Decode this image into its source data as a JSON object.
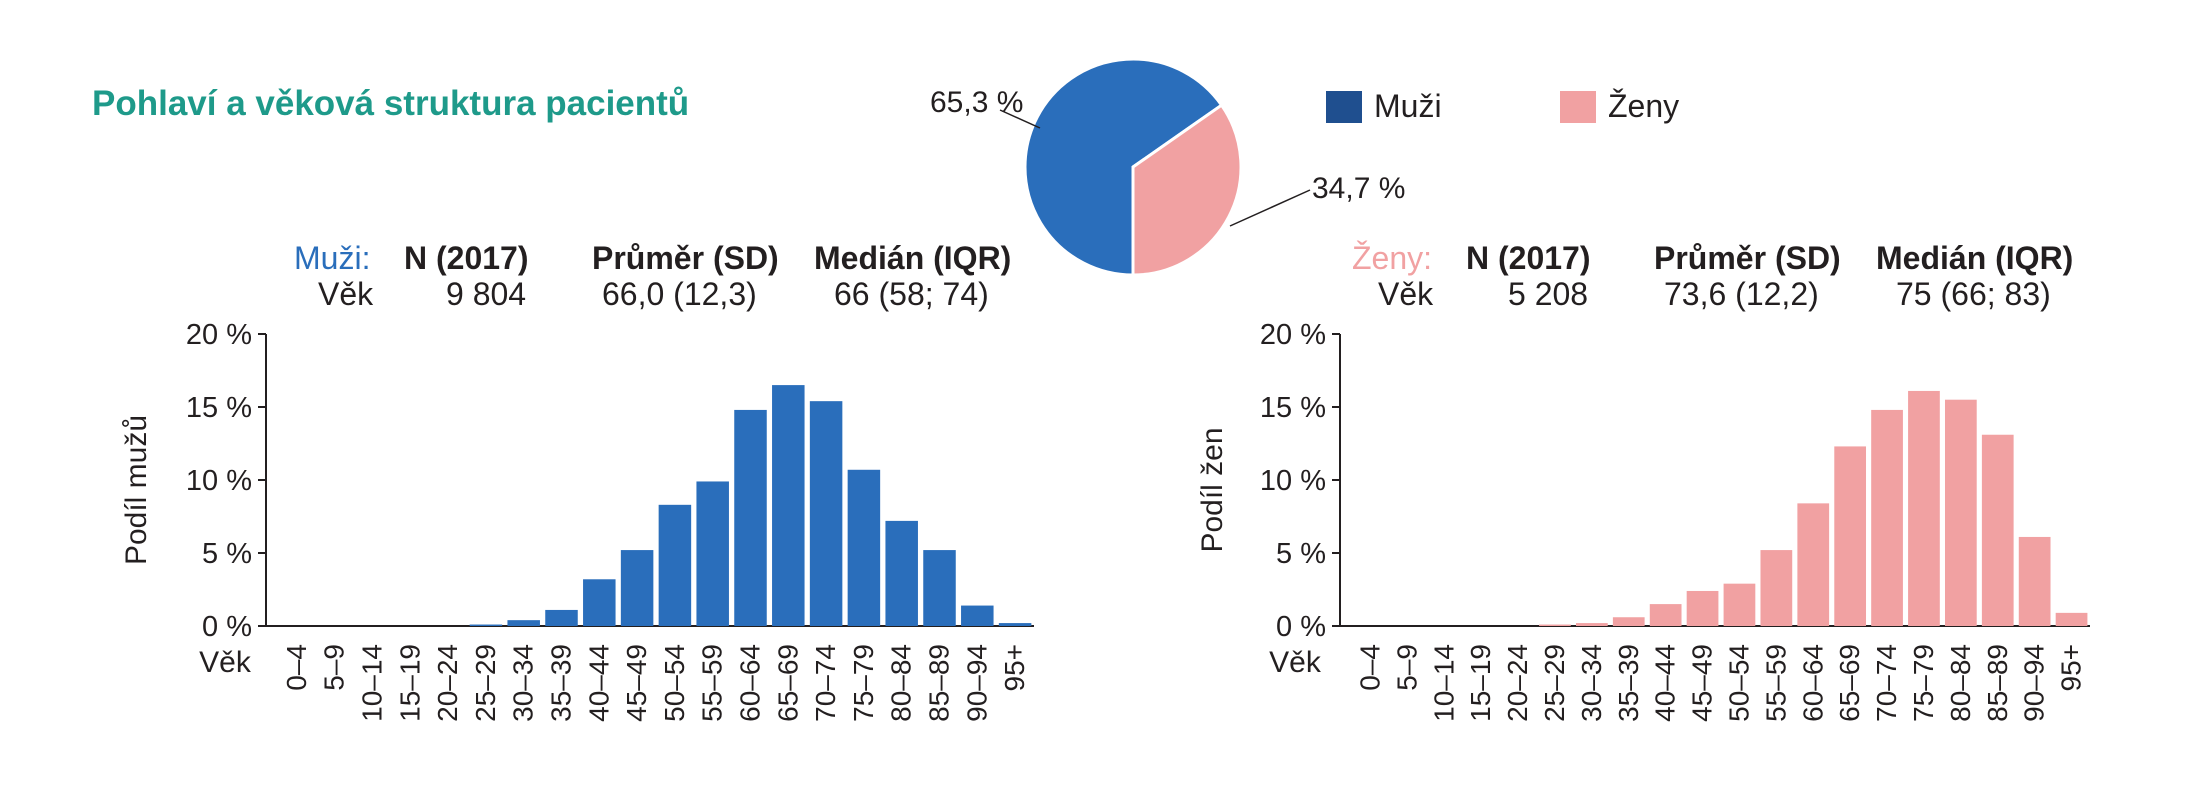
{
  "title": "Pohlaví a věková struktura pacientů",
  "colors": {
    "men": "#2a6ebb",
    "women": "#f1a1a2",
    "title": "#1e9a8a",
    "men_label": "#2a6ebb",
    "women_label": "#f1a1a2"
  },
  "legend": {
    "men": "Muži",
    "women": "Ženy"
  },
  "pie": {
    "men_pct": 65.3,
    "women_pct": 34.7,
    "men_label": "65,3 %",
    "women_label": "34,7 %"
  },
  "men_stats": {
    "group": "Muži:",
    "rowlabel": "Věk",
    "h_n": "N (2017)",
    "h_mean": "Průměr (SD)",
    "h_median": "Medián (IQR)",
    "n": "9 804",
    "mean": "66,0 (12,3)",
    "median": "66 (58; 74)"
  },
  "women_stats": {
    "group": "Ženy:",
    "rowlabel": "Věk",
    "h_n": "N (2017)",
    "h_mean": "Průměr (SD)",
    "h_median": "Medián (IQR)",
    "n": "5 208",
    "mean": "73,6 (12,2)",
    "median": "75 (66; 83)"
  },
  "chart_data": [
    {
      "type": "bar",
      "ylabel": "Podíl mužů",
      "xlabel": "Věk",
      "ylim": [
        0,
        20
      ],
      "yticks": [
        "0 %",
        "5 %",
        "10 %",
        "15 %",
        "20 %"
      ],
      "categories": [
        "0–4",
        "5–9",
        "10–14",
        "15–19",
        "20–24",
        "25–29",
        "30–34",
        "35–39",
        "40–44",
        "45–49",
        "50–54",
        "55–59",
        "60–64",
        "65–69",
        "70–74",
        "75–79",
        "80–84",
        "85–89",
        "90–94",
        "95+"
      ],
      "values": [
        0,
        0,
        0,
        0,
        0,
        0.1,
        0.4,
        1.1,
        3.2,
        5.2,
        8.3,
        9.9,
        14.8,
        16.5,
        15.4,
        10.7,
        7.2,
        5.2,
        1.4,
        0.2
      ],
      "color": "#2a6ebb"
    },
    {
      "type": "bar",
      "ylabel": "Podíl žen",
      "xlabel": "Věk",
      "ylim": [
        0,
        20
      ],
      "yticks": [
        "0 %",
        "5 %",
        "10 %",
        "15 %",
        "20 %"
      ],
      "categories": [
        "0–4",
        "5–9",
        "10–14",
        "15–19",
        "20–24",
        "25–29",
        "30–34",
        "35–39",
        "40–44",
        "45–49",
        "50–54",
        "55–59",
        "60–64",
        "65–69",
        "70–74",
        "75–79",
        "80–84",
        "85–89",
        "90–94",
        "95+"
      ],
      "values": [
        0,
        0,
        0,
        0,
        0,
        0.1,
        0.2,
        0.6,
        1.5,
        2.4,
        2.9,
        5.2,
        8.4,
        12.3,
        14.8,
        16.1,
        15.5,
        13.1,
        6.1,
        0.9
      ],
      "color": "#f1a1a2"
    }
  ]
}
